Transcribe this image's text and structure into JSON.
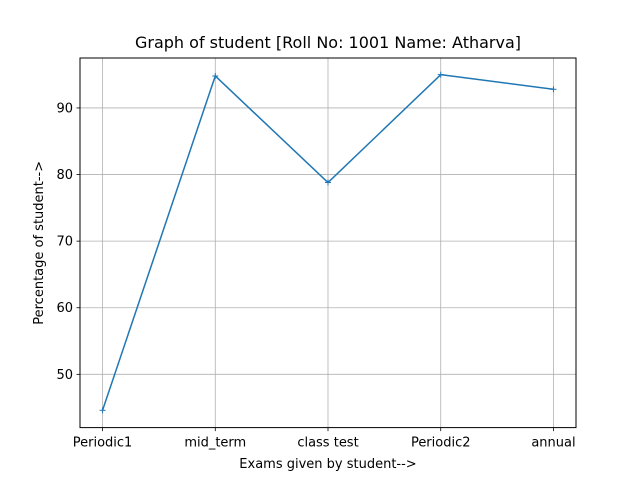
{
  "chart_data": {
    "type": "line",
    "title": "Graph of student [Roll No: 1001 Name: Atharva]",
    "xlabel": "Exams given by student-->",
    "ylabel": "Percentage of student-->",
    "categories": [
      "Periodic1",
      "mid_term",
      "class test",
      "Periodic2",
      "annual"
    ],
    "series": [
      {
        "values": [
          44.6,
          94.8,
          78.8,
          95.0,
          92.8
        ],
        "color": "#1f77b4",
        "marker": "plus"
      }
    ],
    "ylim": [
      42.0,
      97.5
    ],
    "yticks": [
      50,
      60,
      70,
      80,
      90
    ],
    "grid": true,
    "legend": false
  }
}
